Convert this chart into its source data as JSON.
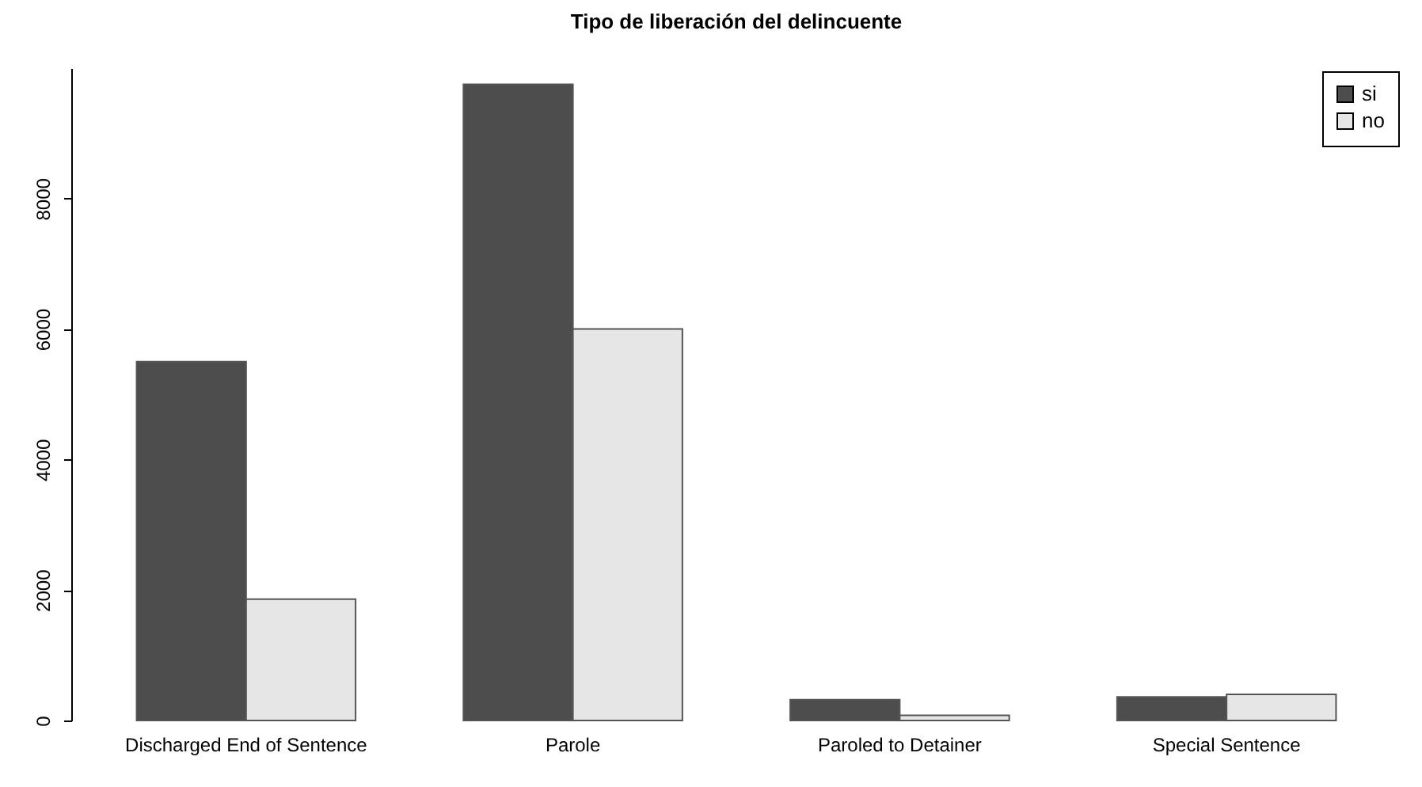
{
  "chart_data": {
    "type": "bar",
    "title": "Tipo de liberación del delincuente",
    "categories": [
      "Discharged End of Sentence",
      "Parole",
      "Paroled to Detainer",
      "Special Sentence"
    ],
    "series": [
      {
        "name": "si",
        "color": "#4d4d4d",
        "values": [
          5500,
          9750,
          320,
          360
        ]
      },
      {
        "name": "no",
        "color": "#e6e6e6",
        "values": [
          1860,
          6000,
          80,
          400
        ]
      }
    ],
    "ylim": [
      0,
      10000
    ],
    "yticks": [
      0,
      2000,
      4000,
      6000,
      8000
    ],
    "legend": "top right"
  }
}
